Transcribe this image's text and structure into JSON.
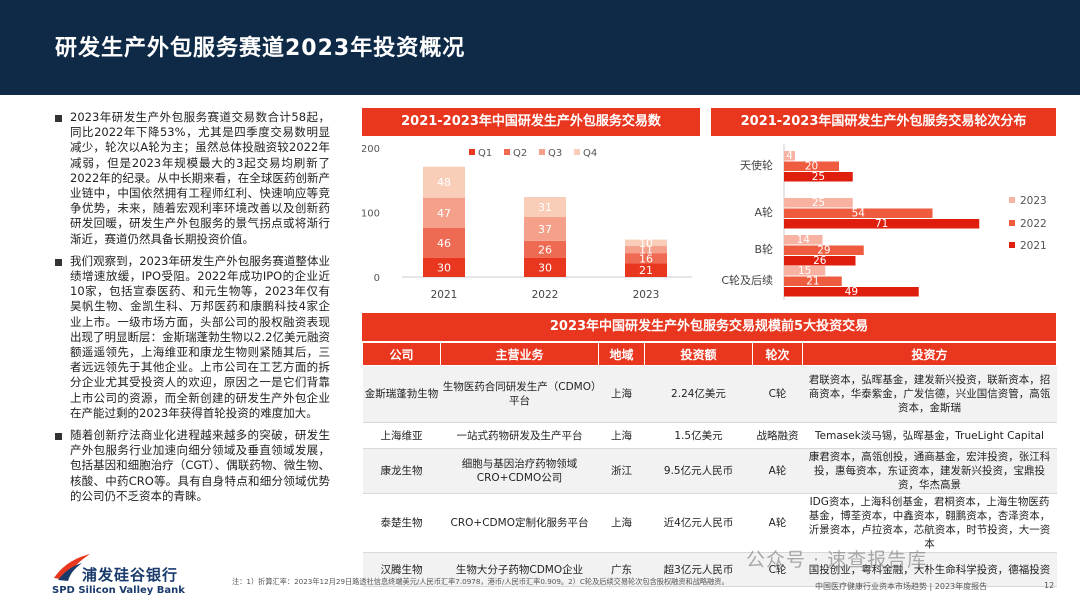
{
  "header": {
    "title": "研发生产外包服务赛道2023年投资概况"
  },
  "bullets": [
    "2023年研发生产外包服务赛道交易数合计58起，同比2022年下降53%，尤其是四季度交易数明显减少，轮次以A轮为主；虽然总体投融资较2022年减弱，但是2023年规模最大的3起交易均刷新了2022年的纪录。从中长期来看，在全球医药创新产业链中，中国依然拥有工程师红利、快速响应等竞争优势，未来，随着宏观利率环境改善以及创新药研发回暖，研发生产外包服务的景气拐点或将渐行渐近，赛道仍然具备长期投资价值。",
    "我们观察到，2023年研发生产外包服务赛道整体业绩增速放缓，IPO受阻。2022年成功IPO的企业近10家，包括宣泰医药、和元生物等，2023年仅有昊帆生物、金凯生科、万邦医药和康鹏科技4家企业上市。一级市场方面，头部公司的股权融资表现出现了明显断层：金斯瑞蓬勃生物以2.2亿美元融资额遥遥领先，上海维亚和康龙生物则紧随其后，三者远远领先于其他企业。上市公司在工艺方面的拆分企业尤其受投资人的欢迎，原因之一是它们背靠上市公司的资源，而全新创建的研发生产外包企业在产能过剩的2023年获得首轮投资的难度加大。",
    "随着创新疗法商业化进程越来越多的突破，研发生产外包服务行业加速向细分领域及垂直领域发展，包括基因和细胞治疗（CGT）、偶联药物、微生物、核酸、中药CRO等。具有自身特点和细分领域优势的公司仍不乏资本的青睐。"
  ],
  "logo": {
    "cn": "浦发硅谷银行",
    "en": "SPD Silicon Valley Bank"
  },
  "panel1": {
    "title": "2021-2023年中国研发生产外包服务交易数"
  },
  "panel2": {
    "title": "2021-2023年国研发生产外包服务交易轮次分布"
  },
  "panel3": {
    "title": "2023年中国研发生产外包服务交易规模前5大投资交易"
  },
  "colors": {
    "q1": "#e8361f",
    "q2": "#ef6a52",
    "q3": "#f4a08a",
    "q4": "#f9cdb8",
    "y2023": "#f7b2a1",
    "y2022": "#ee5b3f",
    "y2021": "#e01e0e",
    "accent": "#e8361f",
    "navy": "#0e2a47"
  },
  "chart_data": [
    {
      "type": "bar",
      "stacked": true,
      "categories": [
        "2021",
        "2022",
        "2023"
      ],
      "series": [
        {
          "name": "Q1",
          "values": [
            30,
            30,
            21
          ]
        },
        {
          "name": "Q2",
          "values": [
            46,
            26,
            16
          ]
        },
        {
          "name": "Q3",
          "values": [
            47,
            37,
            11
          ]
        },
        {
          "name": "Q4",
          "values": [
            48,
            31,
            10
          ]
        }
      ],
      "ylim": [
        0,
        200
      ],
      "yticks": [
        0,
        100,
        200
      ],
      "legend": "top"
    },
    {
      "type": "bar",
      "orientation": "horizontal",
      "categories": [
        "天使轮",
        "A轮",
        "B轮",
        "C轮及后续"
      ],
      "series": [
        {
          "name": "2023",
          "values": [
            4,
            25,
            14,
            15
          ]
        },
        {
          "name": "2022",
          "values": [
            20,
            54,
            29,
            21
          ]
        },
        {
          "name": "2021",
          "values": [
            25,
            71,
            26,
            49
          ]
        }
      ],
      "xlim": [
        0,
        80
      ],
      "legend": "right"
    }
  ],
  "table": {
    "headers": [
      "公司",
      "主营业务",
      "地域",
      "投资额",
      "轮次",
      "投资方"
    ],
    "rows": [
      {
        "company": "金斯瑞蓬勃生物",
        "business": "生物医药合同研发生产（CDMO）平台",
        "region": "上海",
        "amount": "2.24亿美元",
        "round": "C轮",
        "investors": "君联资本，弘晖基金，建发新兴投资，联新资本，招商资本，华泰紫金，广发信德，兴业国信资管，高瓴资本，金斯瑞"
      },
      {
        "company": "上海维亚",
        "business": "一站式药物研发及生产平台",
        "region": "上海",
        "amount": "1.5亿美元",
        "round": "战略融资",
        "investors": "Temasek淡马锡，弘晖基金，TrueLight Capital"
      },
      {
        "company": "康龙生物",
        "business": "细胞与基因治疗药物领域CRO+CDMO公司",
        "region": "浙江",
        "amount": "9.5亿元人民币",
        "round": "A轮",
        "investors": "康君资本，高瓴创投，通商基金，宏沣投资，张江科投，惠每资本，东证资本，建发新兴投资，宝鼎投资，华杰高景"
      },
      {
        "company": "泰楚生物",
        "business": "CRO+CDMO定制化服务平台",
        "region": "上海",
        "amount": "近4亿元人民币",
        "round": "A轮",
        "investors": "IDG资本，上海科创基金，君桐资本，上海生物医药基金，博荃资本，中鑫资本，翱鹏资本，杏泽资本，沂景资本，卢拉资本，芯航资本，时节投资，大一资本"
      },
      {
        "company": "汉腾生物",
        "business": "生物大分子药物CDMO企业",
        "region": "广东",
        "amount": "超3亿元人民币",
        "round": "C轮",
        "investors": "国投创业，粤科金融，大朴生命科学投资，德福投资"
      }
    ]
  },
  "footer": {
    "note": "注：1）折算汇率：2023年12月29日路透社信息终端美元/人民币汇率7.0978，港币/人民币汇率0.909。2）C轮及后续交易轮次包含股权融资和战略融资。",
    "right": "中国医疗健康行业资本市场趋势 | 2023年度报告",
    "page": "12",
    "watermark": "公众号 · 速查报告库"
  }
}
